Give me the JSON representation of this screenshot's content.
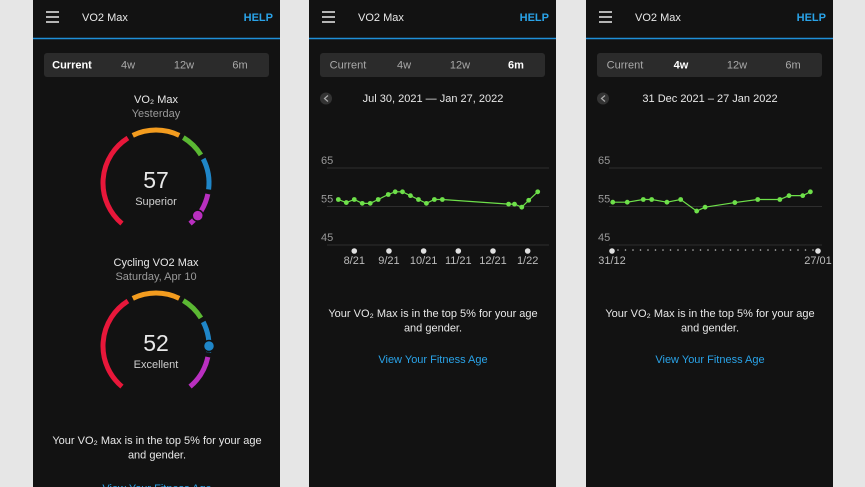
{
  "screens": [
    {
      "header": {
        "title": "VO2 Max",
        "help": "HELP"
      },
      "tabs": [
        "Current",
        "4w",
        "12w",
        "6m"
      ],
      "active_tab": 0,
      "gauges": [
        {
          "title": "VO₂ Max",
          "subtitle": "Yesterday",
          "value": 57,
          "rating": "Superior"
        },
        {
          "title": "Cycling VO2 Max",
          "subtitle": "Saturday, Apr 10",
          "value": 52,
          "rating": "Excellent"
        }
      ],
      "message": [
        "Your VO₂ Max is in the top 5% for your age",
        "and gender."
      ],
      "link": "View Your Fitness Age"
    },
    {
      "header": {
        "title": "VO2 Max",
        "help": "HELP"
      },
      "tabs": [
        "Current",
        "4w",
        "12w",
        "6m"
      ],
      "active_tab": 3,
      "date_range": "Jul 30, 2021 — Jan 27, 2022",
      "chart": {
        "type": "line",
        "color": "#6ee04a",
        "x": [
          -0.46,
          -0.23,
          0,
          0.23,
          0.46,
          0.69,
          0.98,
          1.18,
          1.39,
          1.62,
          1.85,
          2.08,
          2.31,
          2.54,
          4.45,
          4.62,
          4.83,
          5.03,
          5.29
        ],
        "values": [
          55,
          54.2,
          55,
          54,
          54,
          55,
          56.3,
          57,
          57,
          56,
          55,
          54,
          55,
          55,
          53.8,
          53.8,
          53,
          54.8,
          57
        ],
        "xlim": [
          -0.7,
          5.5
        ],
        "ylim": [
          45,
          65
        ],
        "yticks": [
          45,
          55,
          65
        ],
        "xticks": [
          {
            "value": 0,
            "label": "8/21"
          },
          {
            "value": 1,
            "label": "9/21"
          },
          {
            "value": 2,
            "label": "10/21"
          },
          {
            "value": 3,
            "label": "11/21"
          },
          {
            "value": 4,
            "label": "12/21"
          },
          {
            "value": 5,
            "label": "1/22"
          }
        ],
        "grid": true
      },
      "message": [
        "Your VO₂ Max is in the top 5% for your age",
        "and gender."
      ],
      "link": "View Your Fitness Age"
    },
    {
      "header": {
        "title": "VO2 Max",
        "help": "HELP"
      },
      "tabs": [
        "Current",
        "4w",
        "12w",
        "6m"
      ],
      "active_tab": 1,
      "date_range": "31 Dec 2021 – 27 Jan 2022",
      "chart": {
        "type": "line",
        "color": "#6ee04a",
        "x": [
          0.1,
          2,
          4.1,
          5.2,
          7.2,
          9,
          11.1,
          12.2,
          16.1,
          19.1,
          22,
          23.2,
          25,
          26
        ],
        "values": [
          54.3,
          54.3,
          55,
          55,
          54.3,
          55,
          52,
          53,
          54.2,
          55,
          55,
          56,
          56,
          57
        ],
        "xlim": [
          0,
          27
        ],
        "ylim": [
          45,
          65
        ],
        "yticks": [
          45,
          55,
          65
        ],
        "xticks": [
          {
            "value": 0,
            "label": "31/12"
          },
          {
            "value": 27,
            "label": "27/01"
          }
        ],
        "grid": true
      },
      "message": [
        "Your VO₂ Max is in the top 5% for your age",
        "and gender."
      ],
      "link": "View Your Fitness Age"
    }
  ]
}
